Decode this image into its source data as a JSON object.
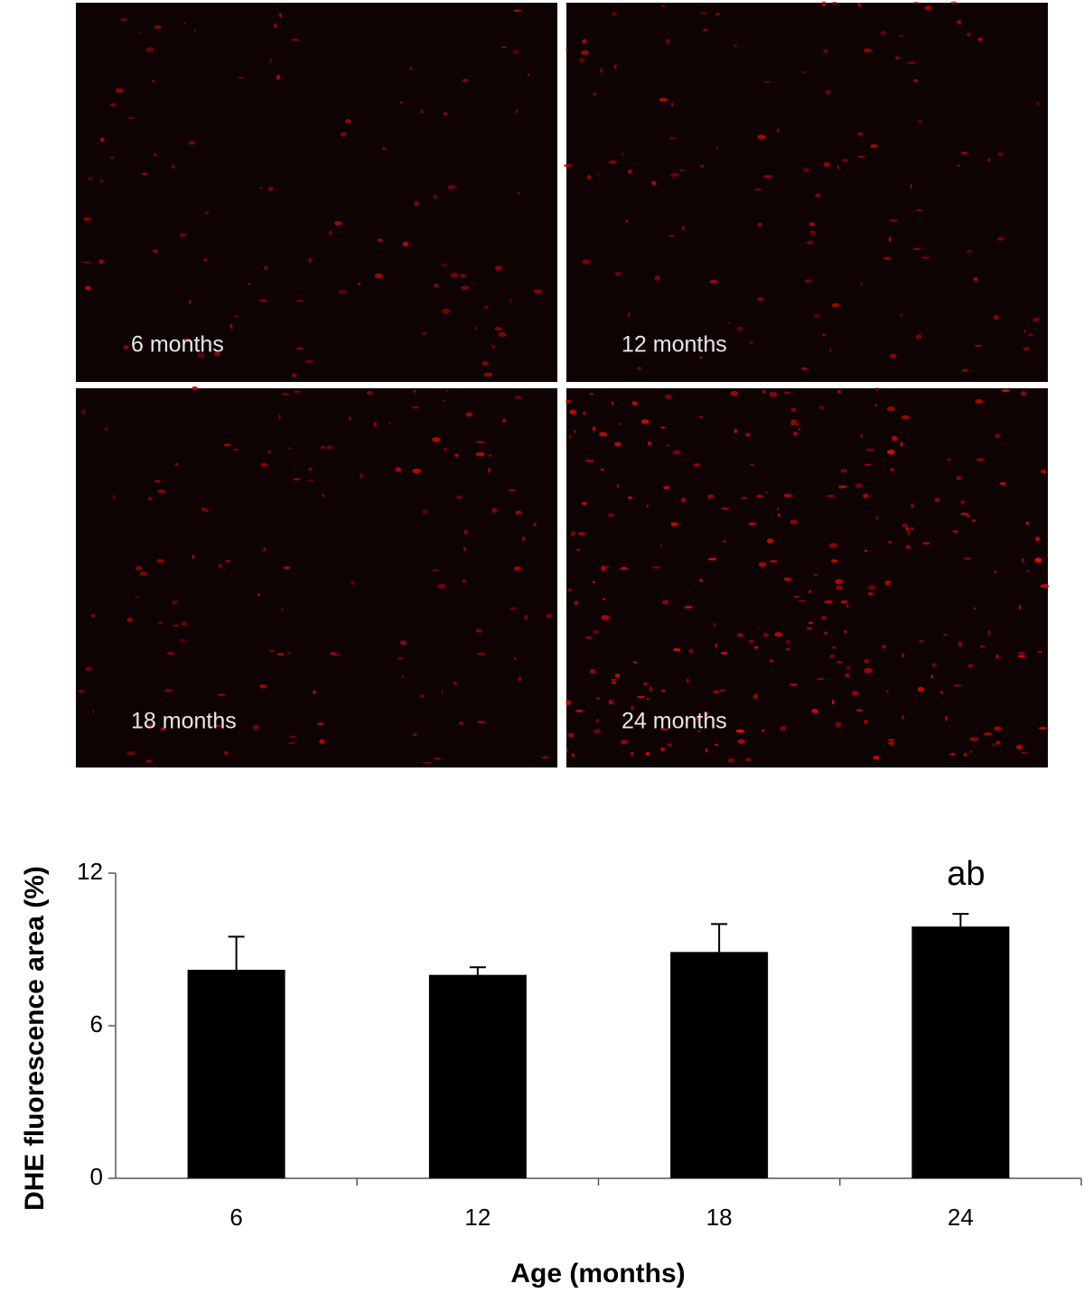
{
  "panels": [
    "6 months",
    "12 months",
    "18 months",
    "24 months"
  ],
  "chart_data": {
    "type": "bar",
    "categories": [
      "6",
      "12",
      "18",
      "24"
    ],
    "values": [
      8.2,
      8.0,
      8.9,
      9.9
    ],
    "errors": [
      1.3,
      0.3,
      1.1,
      0.5
    ],
    "annotations": [
      null,
      null,
      null,
      "ab"
    ],
    "color": "#000000",
    "ylim": [
      0,
      12
    ],
    "yticks": [
      0,
      6,
      12
    ],
    "y_label": "DHE fluorescence area (%)",
    "x_label": "Age (months)"
  }
}
